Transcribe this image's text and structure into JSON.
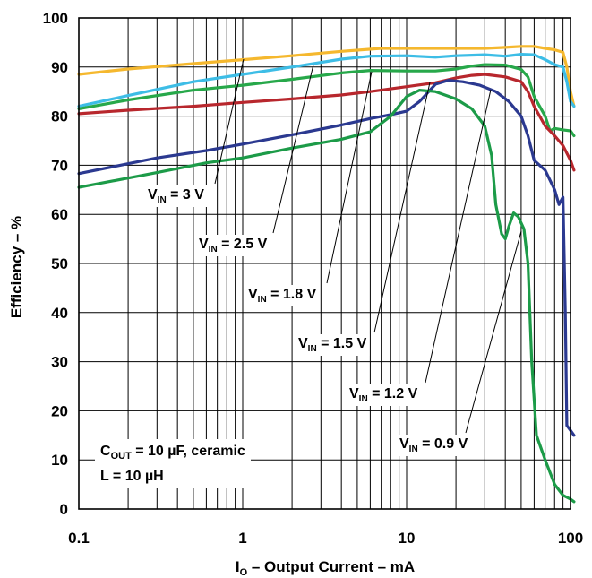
{
  "chart_data": {
    "type": "line",
    "xlabel": {
      "main": "I",
      "sub": "O",
      "rest": " – Output Current – mA"
    },
    "ylabel": "Efficiency – %",
    "x_scale": "log",
    "xlim": [
      0.1,
      100
    ],
    "ylim": [
      0,
      100
    ],
    "x_ticks": [
      "0.1",
      "1",
      "10",
      "100"
    ],
    "y_ticks": [
      "0",
      "10",
      "20",
      "30",
      "40",
      "50",
      "60",
      "70",
      "80",
      "90",
      "100"
    ],
    "grid": true,
    "series": [
      {
        "name": "V_IN = 3 V",
        "label": {
          "main": "V",
          "sub": "IN",
          "rest": " = 3 V"
        },
        "color": "#f5b82e",
        "points": [
          [
            0.1,
            88.5
          ],
          [
            0.2,
            89.6
          ],
          [
            0.5,
            90.7
          ],
          [
            1,
            91.5
          ],
          [
            2,
            92.3
          ],
          [
            4,
            93.2
          ],
          [
            7,
            93.8
          ],
          [
            10,
            93.8
          ],
          [
            20,
            93.8
          ],
          [
            30,
            93.8
          ],
          [
            40,
            94
          ],
          [
            50,
            94.2
          ],
          [
            60,
            94.2
          ],
          [
            70,
            93.8
          ],
          [
            80,
            93.5
          ],
          [
            90,
            93
          ],
          [
            95,
            90
          ],
          [
            100,
            85
          ],
          [
            105,
            82
          ]
        ]
      },
      {
        "name": "V_IN = 2.5 V",
        "label": {
          "main": "V",
          "sub": "IN",
          "rest": " = 2.5 V"
        },
        "color": "#3dbde6",
        "points": [
          [
            0.1,
            82
          ],
          [
            0.2,
            84.2
          ],
          [
            0.5,
            87
          ],
          [
            1,
            88.5
          ],
          [
            2,
            90
          ],
          [
            4,
            91.6
          ],
          [
            6,
            92.2
          ],
          [
            10,
            92.3
          ],
          [
            15,
            92
          ],
          [
            20,
            92.3
          ],
          [
            30,
            92.5
          ],
          [
            40,
            92.2
          ],
          [
            50,
            92.6
          ],
          [
            60,
            92.5
          ],
          [
            70,
            91.5
          ],
          [
            80,
            90.5
          ],
          [
            90,
            90
          ],
          [
            95,
            87
          ],
          [
            100,
            83
          ],
          [
            105,
            82
          ]
        ]
      },
      {
        "name": "V_IN = 1.8 V",
        "label": {
          "main": "V",
          "sub": "IN",
          "rest": " = 1.8 V"
        },
        "color": "#27a84a",
        "points": [
          [
            0.1,
            81.5
          ],
          [
            0.2,
            83.3
          ],
          [
            0.5,
            85.3
          ],
          [
            1,
            86.3
          ],
          [
            2,
            87.5
          ],
          [
            4,
            88.8
          ],
          [
            6,
            89.3
          ],
          [
            10,
            89.2
          ],
          [
            15,
            89.2
          ],
          [
            20,
            89.6
          ],
          [
            25,
            90.2
          ],
          [
            30,
            90.5
          ],
          [
            40,
            90.4
          ],
          [
            50,
            89.5
          ],
          [
            55,
            88
          ],
          [
            60,
            84
          ],
          [
            70,
            80
          ],
          [
            75,
            77
          ],
          [
            80,
            77.5
          ],
          [
            90,
            77.2
          ],
          [
            100,
            77
          ],
          [
            105,
            76
          ]
        ]
      },
      {
        "name": "V_IN = 1.5 V",
        "label": {
          "main": "V",
          "sub": "IN",
          "rest": " = 1.5 V"
        },
        "color": "#b8272d",
        "points": [
          [
            0.1,
            80.5
          ],
          [
            0.2,
            81.2
          ],
          [
            0.5,
            82
          ],
          [
            1,
            82.8
          ],
          [
            2,
            83.5
          ],
          [
            4,
            84.3
          ],
          [
            6,
            85
          ],
          [
            10,
            86
          ],
          [
            15,
            86.8
          ],
          [
            20,
            87.8
          ],
          [
            25,
            88.3
          ],
          [
            30,
            88.5
          ],
          [
            40,
            88
          ],
          [
            50,
            87
          ],
          [
            55,
            85
          ],
          [
            60,
            82
          ],
          [
            70,
            78
          ],
          [
            80,
            76
          ],
          [
            90,
            74
          ],
          [
            100,
            71
          ],
          [
            105,
            69
          ]
        ]
      },
      {
        "name": "V_IN = 1.2 V",
        "label": {
          "main": "V",
          "sub": "IN",
          "rest": " = 1.2 V"
        },
        "color": "#2b3990",
        "points": [
          [
            0.1,
            68.3
          ],
          [
            0.3,
            71.5
          ],
          [
            0.6,
            73
          ],
          [
            1,
            74.3
          ],
          [
            2,
            76.2
          ],
          [
            4,
            78.2
          ],
          [
            6,
            79.5
          ],
          [
            8,
            80.3
          ],
          [
            10,
            81
          ],
          [
            12,
            83
          ],
          [
            15,
            86.5
          ],
          [
            18,
            87.3
          ],
          [
            22,
            87
          ],
          [
            28,
            86.3
          ],
          [
            35,
            85
          ],
          [
            42,
            83
          ],
          [
            50,
            80
          ],
          [
            55,
            76
          ],
          [
            60,
            71
          ],
          [
            70,
            69
          ],
          [
            80,
            65
          ],
          [
            85,
            62
          ],
          [
            90,
            63.5
          ],
          [
            93,
            40
          ],
          [
            95,
            17
          ],
          [
            100,
            16
          ],
          [
            105,
            15
          ]
        ]
      },
      {
        "name": "V_IN = 0.9 V",
        "label": {
          "main": "V",
          "sub": "IN",
          "rest": " = 0.9 V"
        },
        "color": "#1c9b48",
        "points": [
          [
            0.1,
            65.5
          ],
          [
            0.3,
            68.5
          ],
          [
            0.6,
            70.5
          ],
          [
            1,
            71.5
          ],
          [
            2,
            73.5
          ],
          [
            4,
            75.3
          ],
          [
            6,
            76.8
          ],
          [
            8,
            80
          ],
          [
            10,
            84
          ],
          [
            12,
            85.3
          ],
          [
            15,
            85
          ],
          [
            20,
            83.5
          ],
          [
            25,
            81.5
          ],
          [
            30,
            78
          ],
          [
            33,
            72
          ],
          [
            35,
            62
          ],
          [
            38,
            56
          ],
          [
            40,
            55
          ],
          [
            42,
            57.5
          ],
          [
            45,
            60.3
          ],
          [
            48,
            59.5
          ],
          [
            52,
            57
          ],
          [
            55,
            50
          ],
          [
            58,
            30
          ],
          [
            62,
            15
          ],
          [
            70,
            10
          ],
          [
            80,
            5
          ],
          [
            90,
            2.8
          ],
          [
            100,
            2
          ],
          [
            105,
            1.5
          ]
        ]
      }
    ],
    "annotations": [
      {
        "lines": [
          {
            "main": "C",
            "sub": "OUT",
            "rest": " = 10 µF, ceramic"
          },
          {
            "main": "L = 10 µH",
            "sub": "",
            "rest": ""
          }
        ]
      }
    ]
  }
}
